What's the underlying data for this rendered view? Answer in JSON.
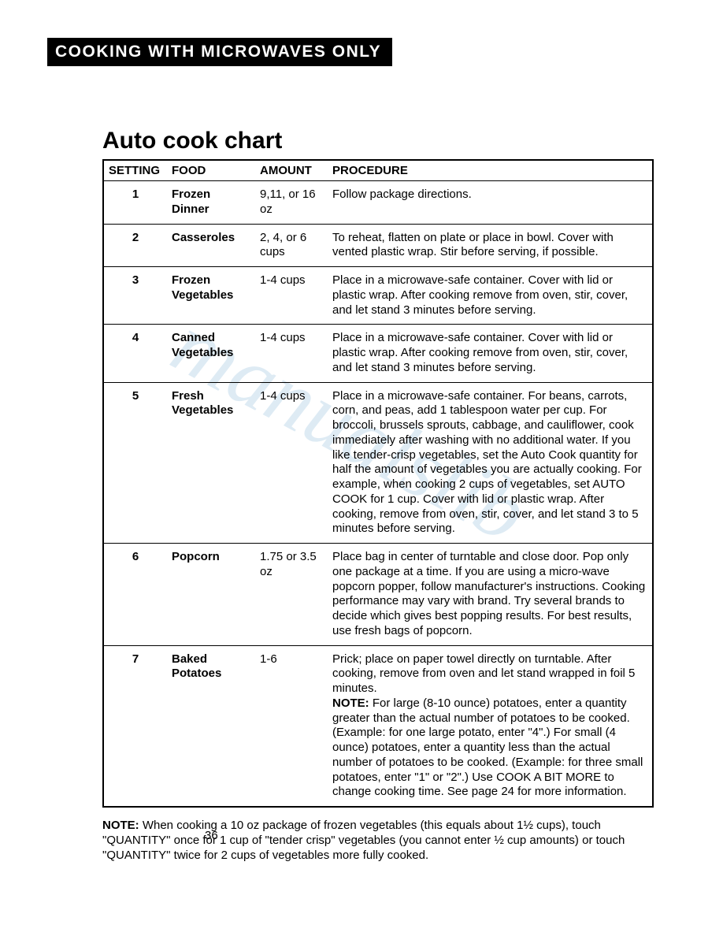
{
  "header_bar": "COOKING WITH MICROWAVES ONLY",
  "title": "Auto cook chart",
  "watermark_text": "manualslib",
  "table": {
    "columns": [
      "SETTING",
      "FOOD",
      "AMOUNT",
      "PROCEDURE"
    ],
    "rows": [
      {
        "setting": "1",
        "food": "Frozen Dinner",
        "amount": "9,11, or 16 oz",
        "procedure": "Follow package directions."
      },
      {
        "setting": "2",
        "food": "Casseroles",
        "amount": "2, 4, or 6 cups",
        "procedure": "To reheat, flatten on plate or place in bowl. Cover with vented plastic wrap. Stir before serving, if possible."
      },
      {
        "setting": "3",
        "food": "Frozen Vegetables",
        "amount": "1-4 cups",
        "procedure": "Place in a microwave-safe container. Cover with lid or plastic wrap. After cooking remove from oven, stir, cover, and let stand 3 minutes before serving."
      },
      {
        "setting": "4",
        "food": "Canned Vegetables",
        "amount": "1-4 cups",
        "procedure": "Place in a microwave-safe container. Cover with lid or plastic wrap. After cooking remove from oven, stir, cover, and let stand 3 minutes before serving."
      },
      {
        "setting": "5",
        "food": "Fresh Vegetables",
        "amount": "1-4 cups",
        "procedure": "Place in a microwave-safe container. For beans, carrots, corn, and peas, add 1 tablespoon water per cup. For broccoli, brussels sprouts, cabbage, and cauliflower, cook immediately after washing with no additional water. If you like tender-crisp vegetables, set the Auto Cook quantity for half the amount of vegetables you are actually cooking. For example, when cooking 2 cups of vegetables, set AUTO COOK for 1 cup. Cover with lid or plastic wrap. After cooking, remove from oven, stir, cover, and let stand 3 to 5 minutes before serving."
      },
      {
        "setting": "6",
        "food": "Popcorn",
        "amount": "1.75 or 3.5 oz",
        "procedure": "Place bag in center of turntable and close door. Pop only one package at a time. If you are using a micro-wave popcorn popper, follow manufacturer's instructions. Cooking performance may vary with brand. Try several brands to decide which gives best popping results. For best results, use fresh bags of popcorn."
      },
      {
        "setting": "7",
        "food": "Baked Potatoes",
        "amount": "1-6",
        "procedure_intro": "Prick; place on paper towel directly on turntable. After cooking, remove from oven and let stand wrapped in foil 5 minutes.",
        "procedure_note_label": "NOTE:",
        "procedure_note": " For large (8-10 ounce) potatoes, enter a quantity greater than the actual number of potatoes to be cooked. (Example: for one large potato, enter \"4\".) For small (4 ounce) potatoes, enter a quantity less than the actual number of potatoes to be cooked. (Example: for three small potatoes, enter \"1\" or \"2\".) Use COOK A BIT MORE to change cooking time. See page 24 for more information."
      }
    ]
  },
  "footer_note": {
    "label": "NOTE:",
    "text": " When cooking a 10 oz package of frozen vegetables (this equals about 1½ cups), touch \"QUANTITY\" once for 1 cup of \"tender crisp\" vegetables (you cannot enter ½ cup amounts) or touch \"QUANTITY\" twice for 2 cups of vegetables more fully cooked."
  },
  "page_number": "36"
}
